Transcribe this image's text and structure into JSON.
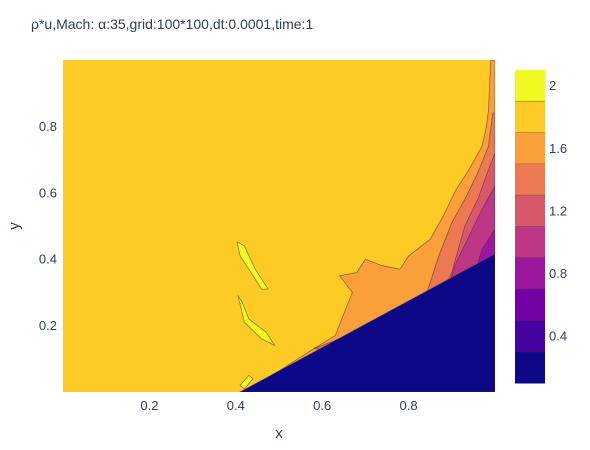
{
  "chart_data": {
    "type": "heatmap",
    "subtype": "filled-contour",
    "title": "ρ*u,Mach: α:35,grid:100*100,dt:0.0001,time:1",
    "xlabel": "x",
    "ylabel": "y",
    "xlim": [
      0,
      1
    ],
    "ylim": [
      0,
      1
    ],
    "x_ticks": [
      0.2,
      0.4,
      0.6,
      0.8
    ],
    "y_ticks": [
      0.2,
      0.4,
      0.6,
      0.8
    ],
    "x_tick_labels": [
      "0.2",
      "0.4",
      "0.6",
      "0.8"
    ],
    "y_tick_labels": [
      "0.2",
      "0.4",
      "0.6",
      "0.8"
    ],
    "grid": false,
    "colorscale": {
      "name": "Plasma",
      "range": [
        0.1,
        2.1
      ],
      "levels": [
        0.1,
        0.3,
        0.5,
        0.7,
        0.9,
        1.1,
        1.3,
        1.5,
        1.7,
        1.9,
        2.1
      ],
      "colors": [
        "#0d0887",
        "#46039f",
        "#7201a8",
        "#9c179e",
        "#bd3786",
        "#d8576b",
        "#ed7953",
        "#fb9f3a",
        "#fdca26",
        "#f0f921"
      ],
      "tick_values": [
        0.4,
        0.8,
        1.2,
        1.6,
        2
      ],
      "tick_labels": [
        "0.4",
        "0.8",
        "1.2",
        "1.6",
        "2"
      ],
      "legend_position": "right"
    },
    "regions": [
      {
        "name": "freestream",
        "value": 1.8,
        "points": [
          [
            0,
            0
          ],
          [
            1,
            0
          ],
          [
            1,
            1
          ],
          [
            0,
            1
          ]
        ]
      },
      {
        "name": "post-shock",
        "value": 1.6,
        "points": [
          [
            0.41,
            0.0
          ],
          [
            0.46,
            0.03
          ],
          [
            0.52,
            0.08
          ],
          [
            0.58,
            0.13
          ],
          [
            0.63,
            0.17
          ],
          [
            0.67,
            0.3
          ],
          [
            0.64,
            0.35
          ],
          [
            0.68,
            0.36
          ],
          [
            0.7,
            0.4
          ],
          [
            0.74,
            0.38
          ],
          [
            0.78,
            0.37
          ],
          [
            0.8,
            0.41
          ],
          [
            0.85,
            0.46
          ],
          [
            0.88,
            0.53
          ],
          [
            0.91,
            0.61
          ],
          [
            0.94,
            0.67
          ],
          [
            0.97,
            0.74
          ],
          [
            0.98,
            0.8
          ],
          [
            0.985,
            0.85
          ],
          [
            0.99,
            1.0
          ],
          [
            1.0,
            1.0
          ],
          [
            1.0,
            0.0
          ]
        ]
      },
      {
        "name": "compression-band-1",
        "value": 1.4,
        "points": [
          [
            0.58,
            0.13
          ],
          [
            0.7,
            0.19
          ],
          [
            0.78,
            0.23
          ],
          [
            0.84,
            0.29
          ],
          [
            0.87,
            0.41
          ],
          [
            0.9,
            0.51
          ],
          [
            0.93,
            0.58
          ],
          [
            0.96,
            0.66
          ],
          [
            0.985,
            0.74
          ],
          [
            0.995,
            0.84
          ],
          [
            1.0,
            0.84
          ],
          [
            1.0,
            0.12
          ]
        ]
      },
      {
        "name": "compression-band-2",
        "value": 1.2,
        "points": [
          [
            0.69,
            0.17
          ],
          [
            0.8,
            0.22
          ],
          [
            0.87,
            0.27
          ],
          [
            0.9,
            0.36
          ],
          [
            0.93,
            0.5
          ],
          [
            0.96,
            0.58
          ],
          [
            0.985,
            0.67
          ],
          [
            1.0,
            0.72
          ],
          [
            1.0,
            0.2
          ]
        ]
      },
      {
        "name": "compression-band-3",
        "value": 1.0,
        "points": [
          [
            0.78,
            0.21
          ],
          [
            0.86,
            0.25
          ],
          [
            0.89,
            0.31
          ],
          [
            0.91,
            0.39
          ],
          [
            0.94,
            0.47
          ],
          [
            0.97,
            0.55
          ],
          [
            1.0,
            0.62
          ],
          [
            1.0,
            0.28
          ]
        ]
      },
      {
        "name": "compression-band-4",
        "value": 0.8,
        "points": [
          [
            0.86,
            0.25
          ],
          [
            0.92,
            0.28
          ],
          [
            0.95,
            0.34
          ],
          [
            0.97,
            0.43
          ],
          [
            1.0,
            0.49
          ],
          [
            1.0,
            0.33
          ]
        ]
      },
      {
        "name": "wedge-body",
        "value": 0.2,
        "points": [
          [
            0.41,
            0.0
          ],
          [
            1.0,
            0.415
          ],
          [
            1.0,
            0.0
          ]
        ]
      },
      {
        "name": "peak-streak-1",
        "value": 2.0,
        "points": [
          [
            0.403,
            0.452
          ],
          [
            0.42,
            0.44
          ],
          [
            0.445,
            0.37
          ],
          [
            0.475,
            0.31
          ],
          [
            0.46,
            0.31
          ],
          [
            0.43,
            0.37
          ],
          [
            0.41,
            0.41
          ]
        ]
      },
      {
        "name": "peak-streak-2",
        "value": 2.0,
        "points": [
          [
            0.405,
            0.29
          ],
          [
            0.42,
            0.21
          ],
          [
            0.46,
            0.16
          ],
          [
            0.49,
            0.14
          ],
          [
            0.47,
            0.18
          ],
          [
            0.43,
            0.22
          ],
          [
            0.415,
            0.27
          ]
        ]
      },
      {
        "name": "peak-streak-3",
        "value": 2.0,
        "points": [
          [
            0.41,
            0.02
          ],
          [
            0.43,
            0.05
          ],
          [
            0.44,
            0.04
          ],
          [
            0.42,
            0.01
          ]
        ]
      }
    ]
  }
}
